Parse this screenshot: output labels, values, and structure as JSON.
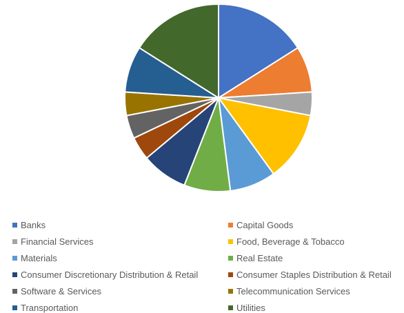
{
  "chart_data": {
    "type": "pie",
    "title": "",
    "slices": [
      {
        "label": "Banks",
        "value": 16.7,
        "color": "#4472C4"
      },
      {
        "label": "Capital Goods",
        "value": 8.3,
        "color": "#ED7D31"
      },
      {
        "label": "Financial Services",
        "value": 4.2,
        "color": "#A5A5A5"
      },
      {
        "label": "Food, Beverage & Tobacco",
        "value": 12.5,
        "color": "#FFC000"
      },
      {
        "label": "Materials",
        "value": 8.3,
        "color": "#5B9BD5"
      },
      {
        "label": "Real Estate",
        "value": 8.3,
        "color": "#70AD47"
      },
      {
        "label": "Consumer Discretionary Distribution & Retail",
        "value": 8.3,
        "color": "#264478"
      },
      {
        "label": "Consumer Staples Distribution & Retail",
        "value": 4.2,
        "color": "#9E480E"
      },
      {
        "label": "Software & Services",
        "value": 4.2,
        "color": "#636363"
      },
      {
        "label": "Telecommunication Services",
        "value": 4.2,
        "color": "#997300"
      },
      {
        "label": "Transportation",
        "value": 8.3,
        "color": "#255E91"
      },
      {
        "label": "Utilities",
        "value": 16.7,
        "color": "#43682B"
      }
    ],
    "legend_position": "bottom",
    "legend_columns": 2
  }
}
